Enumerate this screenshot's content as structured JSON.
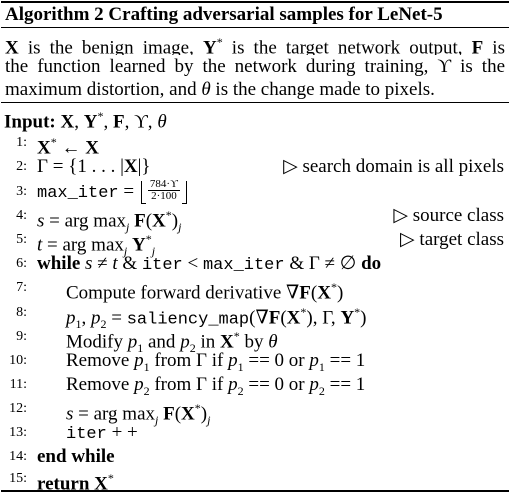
{
  "algorithm": {
    "title": "Algorithm 2 Crafting adversarial samples for LeNet-5",
    "description": {
      "line1": "X is the benign image, Y* is the target network output, F is",
      "line2": "the function learned by the network during training, ϒ is the",
      "line3": "maximum distortion, and θ is the change made to pixels."
    },
    "input": "Input: X, Y*, F, ϒ, θ",
    "steps": [
      {
        "num": "1:",
        "text": "X* ← X"
      },
      {
        "num": "2:",
        "text": "Γ = {1 . . . |X|}",
        "comment": "▷ search domain is all pixels"
      },
      {
        "num": "3:",
        "text_prefix": "max_iter = ",
        "frac_num": "784·ϒ",
        "frac_den": "2·100"
      },
      {
        "num": "4:",
        "text": "s = arg maxj F(X*)j",
        "comment": "▷ source class"
      },
      {
        "num": "5:",
        "text": "t = arg maxj Y*j",
        "comment": "▷ target class"
      },
      {
        "num": "6:",
        "text": "while s ≠ t & iter < max_iter & Γ ≠ ∅ do"
      },
      {
        "num": "7:",
        "text": "Compute forward derivative ∇F(X*)"
      },
      {
        "num": "8:",
        "text": "p1, p2 = saliency_map(∇F(X*), Γ, Y*)"
      },
      {
        "num": "9:",
        "text": "Modify p1 and p2 in X* by θ"
      },
      {
        "num": "10:",
        "text": "Remove p1 from Γ if p1 == 0 or p1 == 1"
      },
      {
        "num": "11:",
        "text": "Remove p2 from Γ if p2 == 0 or p2 == 1"
      },
      {
        "num": "12:",
        "text": "s = arg maxj F(X*)j"
      },
      {
        "num": "13:",
        "text": "iter + +"
      },
      {
        "num": "14:",
        "text": "end while"
      },
      {
        "num": "15:",
        "text": "return X*"
      }
    ]
  }
}
